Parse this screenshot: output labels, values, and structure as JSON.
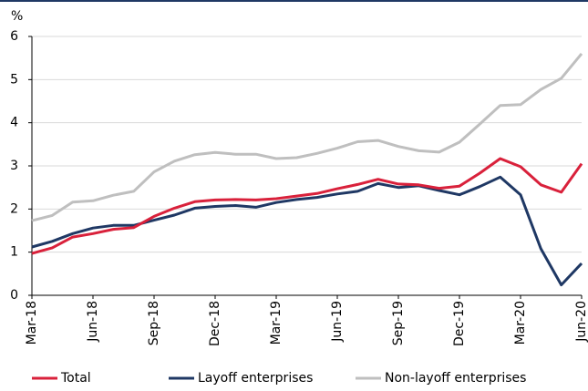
{
  "chart_data": {
    "type": "line",
    "y_label": "%",
    "categories": [
      "Mar-18",
      null,
      null,
      "Jun-18",
      null,
      null,
      "Sep-18",
      null,
      null,
      "Dec-18",
      null,
      null,
      "Mar-19",
      null,
      null,
      "Jun-19",
      null,
      null,
      "Sep-19",
      null,
      null,
      "Dec-19",
      null,
      null,
      "Mar-20",
      null,
      null,
      "Jun-20"
    ],
    "series": [
      {
        "name": "Total",
        "color": "#d9213b",
        "values": [
          0.97,
          1.1,
          1.35,
          1.43,
          1.53,
          1.57,
          1.83,
          2.02,
          2.17,
          2.21,
          2.22,
          2.21,
          2.24,
          2.3,
          2.36,
          2.47,
          2.57,
          2.69,
          2.58,
          2.56,
          2.48,
          2.53,
          2.83,
          3.17,
          2.98,
          2.56,
          2.39,
          3.05
        ]
      },
      {
        "name": "Layoff enterprises",
        "color": "#1f3864",
        "values": [
          1.12,
          1.25,
          1.43,
          1.56,
          1.62,
          1.62,
          1.74,
          1.86,
          2.02,
          2.06,
          2.08,
          2.04,
          2.15,
          2.22,
          2.27,
          2.35,
          2.41,
          2.59,
          2.5,
          2.54,
          2.43,
          2.33,
          2.52,
          2.74,
          2.33,
          1.08,
          0.24,
          0.74
        ]
      },
      {
        "name": "Non-layoff enterprises",
        "color": "#bfbfbf",
        "values": [
          1.73,
          1.85,
          2.16,
          2.19,
          2.32,
          2.41,
          2.86,
          3.11,
          3.26,
          3.31,
          3.27,
          3.27,
          3.17,
          3.19,
          3.29,
          3.41,
          3.56,
          3.59,
          3.45,
          3.35,
          3.32,
          3.55,
          3.97,
          4.4,
          4.42,
          4.77,
          5.03,
          5.6
        ]
      }
    ],
    "ylim": [
      0,
      6
    ],
    "yticks": [
      0,
      1,
      2,
      3,
      4,
      5,
      6
    ],
    "grid": true,
    "legend": "bottom"
  }
}
